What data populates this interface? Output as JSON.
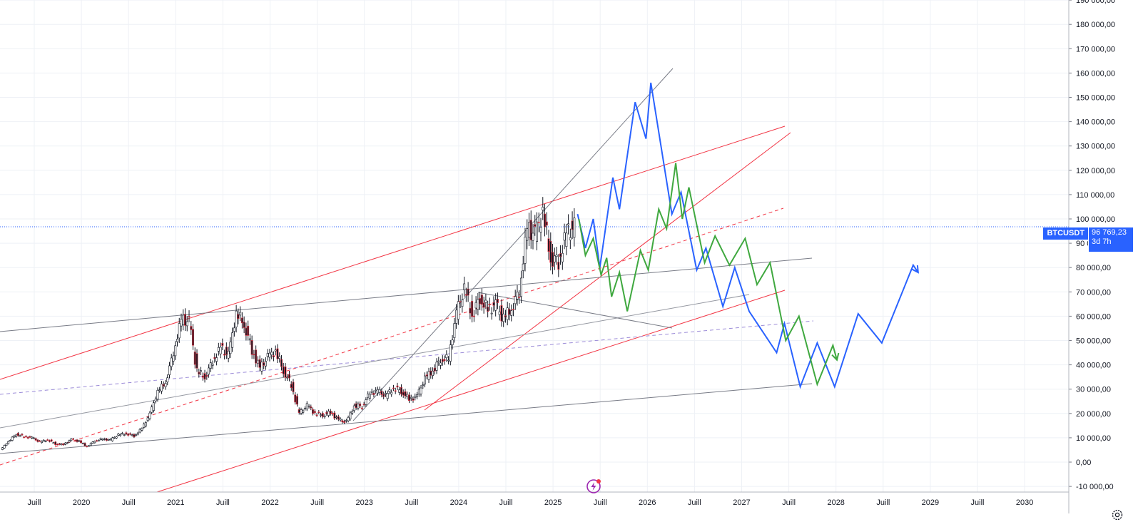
{
  "chart_data": {
    "type": "line",
    "symbol": "BTCUSDT",
    "last_price": "96 769,23",
    "countdown": "3d 7h",
    "y_axis": {
      "ticks": [
        "-10 000,00",
        "0,00",
        "10 000,00",
        "20 000,00",
        "30 000,00",
        "40 000,00",
        "50 000,00",
        "60 000,00",
        "70 000,00",
        "80 000,00",
        "90 000,00",
        "100 000,00",
        "110 000,00",
        "120 000,00",
        "130 000,00",
        "140 000,00",
        "150 000,00",
        "160 000,00",
        "170 000,00",
        "180 000,00",
        "190 000,00"
      ],
      "values": [
        -10000,
        0,
        10000,
        20000,
        30000,
        40000,
        50000,
        60000,
        70000,
        80000,
        90000,
        100000,
        110000,
        120000,
        130000,
        140000,
        150000,
        160000,
        170000,
        180000,
        190000
      ],
      "ylim": [
        -12000,
        190000
      ]
    },
    "x_axis": {
      "ticks": [
        "Juill",
        "2020",
        "Juill",
        "2021",
        "Juill",
        "2022",
        "Juill",
        "2023",
        "Juill",
        "2024",
        "Juill",
        "2025",
        "Juill",
        "2026",
        "Juill",
        "2027",
        "Juill",
        "2028",
        "Juill",
        "2029",
        "Juill",
        "2030"
      ],
      "xlim": [
        "2019-04-01",
        "2030-09-01"
      ]
    },
    "price_history": [
      [
        "2019-04",
        5000
      ],
      [
        "2019-05",
        8500
      ],
      [
        "2019-06",
        11500
      ],
      [
        "2019-07",
        10500
      ],
      [
        "2019-08",
        10000
      ],
      [
        "2019-09",
        8300
      ],
      [
        "2019-10",
        9200
      ],
      [
        "2019-11",
        7500
      ],
      [
        "2019-12",
        7200
      ],
      [
        "2020-01",
        9300
      ],
      [
        "2020-02",
        8500
      ],
      [
        "2020-03",
        6400
      ],
      [
        "2020-04",
        8800
      ],
      [
        "2020-05",
        9500
      ],
      [
        "2020-06",
        9100
      ],
      [
        "2020-07",
        11300
      ],
      [
        "2020-08",
        11700
      ],
      [
        "2020-09",
        10800
      ],
      [
        "2020-10",
        13800
      ],
      [
        "2020-11",
        19700
      ],
      [
        "2020-12",
        29000
      ],
      [
        "2021-01",
        33000
      ],
      [
        "2021-02",
        45000
      ],
      [
        "2021-03",
        58800
      ],
      [
        "2021-04",
        57700
      ],
      [
        "2021-05",
        37300
      ],
      [
        "2021-06",
        35000
      ],
      [
        "2021-07",
        41500
      ],
      [
        "2021-08",
        47100
      ],
      [
        "2021-09",
        43800
      ],
      [
        "2021-10",
        61300
      ],
      [
        "2021-11",
        57000
      ],
      [
        "2021-12",
        46200
      ],
      [
        "2022-01",
        38500
      ],
      [
        "2022-02",
        43200
      ],
      [
        "2022-03",
        45500
      ],
      [
        "2022-04",
        37700
      ],
      [
        "2022-05",
        31800
      ],
      [
        "2022-06",
        19900
      ],
      [
        "2022-07",
        23300
      ],
      [
        "2022-08",
        20100
      ],
      [
        "2022-09",
        19400
      ],
      [
        "2022-10",
        20500
      ],
      [
        "2022-11",
        17200
      ],
      [
        "2022-12",
        16500
      ],
      [
        "2023-01",
        23100
      ],
      [
        "2023-02",
        23100
      ],
      [
        "2023-03",
        28500
      ],
      [
        "2023-04",
        29200
      ],
      [
        "2023-05",
        27200
      ],
      [
        "2023-06",
        30500
      ],
      [
        "2023-07",
        29200
      ],
      [
        "2023-08",
        25900
      ],
      [
        "2023-09",
        27000
      ],
      [
        "2023-10",
        34500
      ],
      [
        "2023-11",
        37700
      ],
      [
        "2023-12",
        42300
      ],
      [
        "2024-01",
        42600
      ],
      [
        "2024-02",
        61200
      ],
      [
        "2024-03",
        71300
      ],
      [
        "2024-04",
        60700
      ],
      [
        "2024-05",
        67500
      ],
      [
        "2024-06",
        62700
      ],
      [
        "2024-07",
        64600
      ],
      [
        "2024-08",
        59000
      ],
      [
        "2024-09",
        63300
      ],
      [
        "2024-10",
        70300
      ],
      [
        "2024-11",
        96400
      ],
      [
        "2024-12",
        93400
      ],
      [
        "2025-01",
        102400
      ],
      [
        "2025-02",
        84300
      ],
      [
        "2025-03",
        82500
      ],
      [
        "2025-04",
        94200
      ],
      [
        "2025-05",
        96769
      ]
    ],
    "series": [
      {
        "color": "#2962ff",
        "values": [
          [
            "2025-05-10",
            102000
          ],
          [
            "2025-06-10",
            88000
          ],
          [
            "2025-07-10",
            100000
          ],
          [
            "2025-08-05",
            80000
          ],
          [
            "2025-09-25",
            117000
          ],
          [
            "2025-10-20",
            104000
          ],
          [
            "2025-12-20",
            148000
          ],
          [
            "2026-02-01",
            133000
          ],
          [
            "2026-02-20",
            156000
          ],
          [
            "2026-05-10",
            102000
          ],
          [
            "2026-06-15",
            111000
          ],
          [
            "2026-08-15",
            79000
          ],
          [
            "2026-09-20",
            88000
          ],
          [
            "2026-11-25",
            64000
          ],
          [
            "2027-01-10",
            80000
          ],
          [
            "2027-03-05",
            62000
          ],
          [
            "2027-06-20",
            45000
          ],
          [
            "2027-07-20",
            57000
          ],
          [
            "2027-09-20",
            31000
          ],
          [
            "2027-11-25",
            49000
          ],
          [
            "2028-02-01",
            31000
          ],
          [
            "2028-05-01",
            61000
          ],
          [
            "2028-08-01",
            49000
          ],
          [
            "2028-12-01",
            81000
          ],
          [
            "2028-12-20",
            78000
          ]
        ]
      },
      {
        "color": "#3fa83f",
        "values": [
          [
            "2025-05-15",
            100000
          ],
          [
            "2025-06-10",
            85000
          ],
          [
            "2025-07-10",
            92000
          ],
          [
            "2025-08-10",
            77000
          ],
          [
            "2025-09-01",
            84000
          ],
          [
            "2025-09-20",
            68000
          ],
          [
            "2025-10-20",
            78000
          ],
          [
            "2025-11-20",
            62000
          ],
          [
            "2026-01-10",
            87000
          ],
          [
            "2026-02-10",
            79000
          ],
          [
            "2026-03-20",
            104000
          ],
          [
            "2026-04-20",
            96000
          ],
          [
            "2026-05-25",
            123000
          ],
          [
            "2026-06-20",
            100000
          ],
          [
            "2026-07-15",
            113000
          ],
          [
            "2026-09-15",
            82000
          ],
          [
            "2026-10-25",
            93000
          ],
          [
            "2026-12-20",
            81000
          ],
          [
            "2027-02-20",
            92000
          ],
          [
            "2027-04-05",
            73000
          ],
          [
            "2027-05-25",
            82000
          ],
          [
            "2027-07-25",
            50000
          ],
          [
            "2027-09-15",
            60000
          ],
          [
            "2027-11-25",
            32000
          ],
          [
            "2028-01-25",
            48000
          ],
          [
            "2028-02-10",
            42000
          ]
        ]
      }
    ]
  }
}
